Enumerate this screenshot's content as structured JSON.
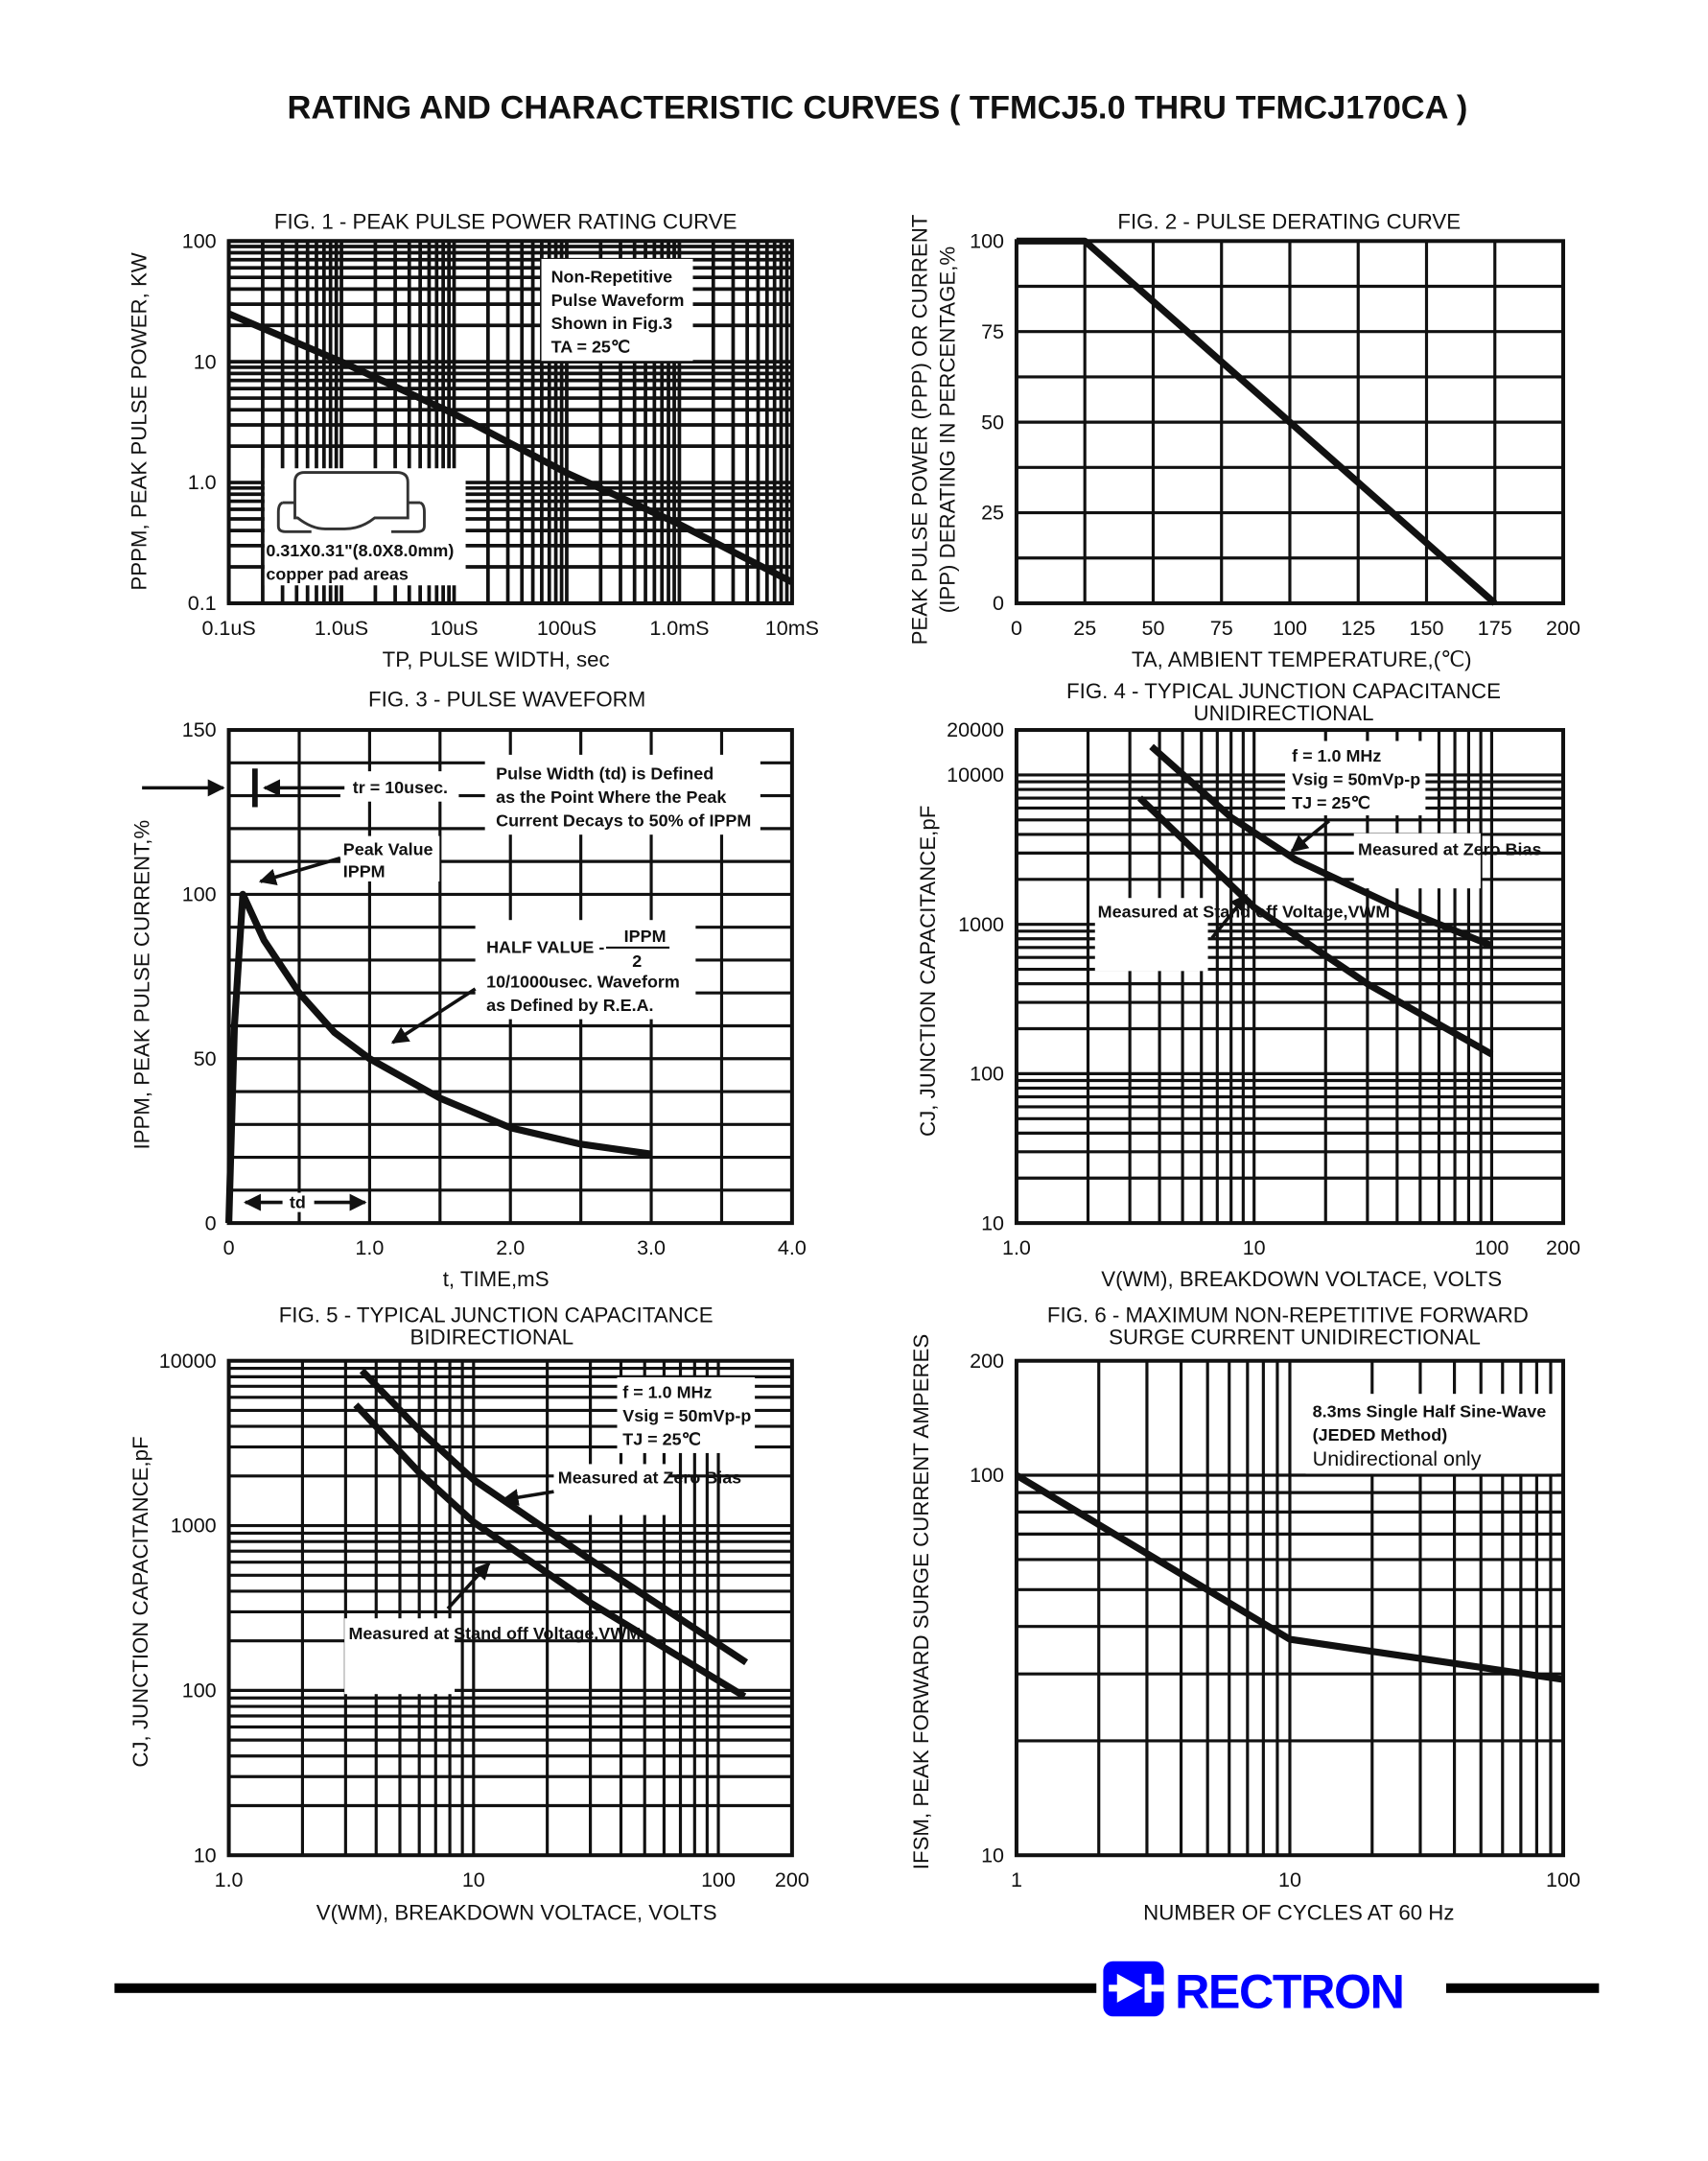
{
  "page": {
    "title": "RATING AND CHARACTERISTIC CURVES ( TFMCJ5.0 THRU TFMCJ170CA )",
    "logo_text": "RECTRON",
    "brand_color": "#0000ff"
  },
  "chart_data": [
    {
      "type": "line",
      "title": "FIG. 1 - PEAK PULSE POWER RATING CURVE",
      "xlabel": "TP, PULSE WIDTH, sec",
      "ylabel": "PPPM, PEAK PULSE POWER, KW",
      "x_scale": "log",
      "y_scale": "log",
      "xlim": [
        1e-07,
        0.01
      ],
      "ylim": [
        0.1,
        100
      ],
      "grid": true,
      "x_ticks": [
        {
          "value": 1e-07,
          "label": "0.1uS"
        },
        {
          "value": 1e-06,
          "label": "1.0uS"
        },
        {
          "value": 1e-05,
          "label": "10uS"
        },
        {
          "value": 0.0001,
          "label": "100uS"
        },
        {
          "value": 0.001,
          "label": "1.0mS"
        },
        {
          "value": 0.01,
          "label": "10mS"
        }
      ],
      "y_ticks": [
        {
          "value": 100,
          "label": "100"
        },
        {
          "value": 10,
          "label": "10"
        },
        {
          "value": 1,
          "label": "1.0"
        },
        {
          "value": 0.1,
          "label": "0.1"
        }
      ],
      "series": [
        {
          "x": [
            1e-07,
            1e-06,
            1e-05,
            0.0001,
            0.001,
            0.01
          ],
          "y": [
            25,
            10,
            3.7,
            1.2,
            0.45,
            0.15
          ]
        }
      ],
      "annotations": [
        "Non-Repetitive",
        "Pulse Waveform",
        "Shown in Fig.3",
        "TA = 25℃",
        "0.31X0.31\"(8.0X8.0mm)",
        "copper pad areas"
      ]
    },
    {
      "type": "line",
      "title": "FIG. 2 - PULSE DERATING CURVE",
      "xlabel": "TA, AMBIENT TEMPERATURE,(℃)",
      "ylabel": [
        "PEAK PULSE POWER (PPP) OR CURRENT",
        "(IPP) DERATING IN PERCENTAGE,%"
      ],
      "x_scale": "linear",
      "y_scale": "linear",
      "xlim": [
        0,
        200
      ],
      "ylim": [
        0,
        100
      ],
      "x_grid_step": 25,
      "y_grid_step": 12.5,
      "grid": true,
      "x_ticks": [
        {
          "value": 0,
          "label": "0"
        },
        {
          "value": 25,
          "label": "25"
        },
        {
          "value": 50,
          "label": "50"
        },
        {
          "value": 75,
          "label": "75"
        },
        {
          "value": 100,
          "label": "100"
        },
        {
          "value": 125,
          "label": "125"
        },
        {
          "value": 150,
          "label": "150"
        },
        {
          "value": 175,
          "label": "175"
        },
        {
          "value": 200,
          "label": "200"
        }
      ],
      "y_ticks": [
        {
          "value": 100,
          "label": "100"
        },
        {
          "value": 75,
          "label": "75"
        },
        {
          "value": 50,
          "label": "50"
        },
        {
          "value": 25,
          "label": "25"
        },
        {
          "value": 0,
          "label": "0"
        }
      ],
      "series": [
        {
          "x": [
            0,
            25,
            175
          ],
          "y": [
            100,
            100,
            0
          ]
        }
      ],
      "annotations": []
    },
    {
      "type": "line",
      "title": "FIG. 3 - PULSE WAVEFORM",
      "xlabel": "t, TIME,mS",
      "ylabel": "IPPM, PEAK PULSE CURRENT,%",
      "x_scale": "linear",
      "y_scale": "linear",
      "xlim": [
        0,
        4.0
      ],
      "ylim": [
        0,
        150
      ],
      "x_grid_step": 0.5,
      "y_grid_step": 10,
      "grid": true,
      "x_ticks": [
        {
          "value": 0,
          "label": "0"
        },
        {
          "value": 1,
          "label": "1.0"
        },
        {
          "value": 2,
          "label": "2.0"
        },
        {
          "value": 3,
          "label": "3.0"
        },
        {
          "value": 4,
          "label": "4.0"
        }
      ],
      "y_ticks": [
        {
          "value": 150,
          "label": "150"
        },
        {
          "value": 100,
          "label": "100"
        },
        {
          "value": 50,
          "label": "50"
        },
        {
          "value": 0,
          "label": "0"
        }
      ],
      "series": [
        {
          "x": [
            0,
            0.04,
            0.1,
            0.25,
            0.5,
            0.75,
            1.0,
            1.5,
            2.0,
            2.5,
            3.0
          ],
          "y": [
            0,
            60,
            100,
            86,
            70,
            58,
            50,
            38,
            29,
            24,
            21
          ]
        }
      ],
      "annotations": [
        "tr = 10usec.",
        "Pulse Width (td) is Defined",
        "as the Point Where the Peak",
        "Current Decays to 50% of IPPM",
        "Peak Value",
        "IPPM",
        "HALF VALUE -",
        "IPPM",
        "2",
        "10/1000usec. Waveform",
        "as Defined by R.E.A.",
        "td"
      ]
    },
    {
      "type": "line",
      "title": [
        "FIG. 4 - TYPICAL JUNCTION CAPACITANCE",
        "UNIDIRECTIONAL"
      ],
      "xlabel": "V(WM), BREAKDOWN VOLTACE, VOLTS",
      "ylabel": "CJ, JUNCTION CAPACITANCE,pF",
      "x_scale": "log",
      "y_scale": "log",
      "xlim": [
        1,
        200
      ],
      "ylim": [
        10,
        20000
      ],
      "grid": true,
      "x_ticks": [
        {
          "value": 1,
          "label": "1.0"
        },
        {
          "value": 10,
          "label": "10"
        },
        {
          "value": 100,
          "label": "100"
        },
        {
          "value": 200,
          "label": "200"
        }
      ],
      "y_ticks": [
        {
          "value": 20000,
          "label": "20000"
        },
        {
          "value": 10000,
          "label": "10000"
        },
        {
          "value": 1000,
          "label": "1000"
        },
        {
          "value": 100,
          "label": "100"
        },
        {
          "value": 10,
          "label": "10"
        }
      ],
      "series": [
        {
          "name": "Measured at Zero Bias",
          "x": [
            3.7,
            8,
            15,
            40,
            100
          ],
          "y": [
            15500,
            5200,
            2700,
            1300,
            720
          ]
        },
        {
          "name": "Measured at Stand off Voltage,VWM",
          "x": [
            3.3,
            10,
            30,
            100
          ],
          "y": [
            7000,
            1300,
            400,
            135
          ]
        }
      ],
      "annotations": [
        "f = 1.0 MHz",
        "Vsig = 50mVp-p",
        "TJ = 25℃"
      ]
    },
    {
      "type": "line",
      "title": [
        "FIG. 5 - TYPICAL JUNCTION CAPACITANCE",
        "BIDIRECTIONAL"
      ],
      "xlabel": "V(WM), BREAKDOWN VOLTACE, VOLTS",
      "ylabel": "CJ, JUNCTION CAPACITANCE,pF",
      "x_scale": "log",
      "y_scale": "log",
      "xlim": [
        1,
        200
      ],
      "ylim": [
        10,
        10000
      ],
      "grid": true,
      "x_ticks": [
        {
          "value": 1,
          "label": "1.0"
        },
        {
          "value": 10,
          "label": "10"
        },
        {
          "value": 100,
          "label": "100"
        },
        {
          "value": 200,
          "label": "200"
        }
      ],
      "y_ticks": [
        {
          "value": 10000,
          "label": "10000"
        },
        {
          "value": 1000,
          "label": "1000"
        },
        {
          "value": 100,
          "label": "100"
        },
        {
          "value": 10,
          "label": "10"
        }
      ],
      "series": [
        {
          "name": "Measured at Zero Bias",
          "x": [
            3.5,
            6,
            10,
            30,
            130
          ],
          "y": [
            8700,
            3800,
            1900,
            620,
            148
          ]
        },
        {
          "name": "Measured at Stand off Voltage,VWM",
          "x": [
            3.3,
            6,
            10,
            30,
            128
          ],
          "y": [
            5400,
            2100,
            1050,
            340,
            92
          ]
        }
      ],
      "annotations": [
        "f = 1.0 MHz",
        "Vsig = 50mVp-p",
        "TJ = 25℃"
      ]
    },
    {
      "type": "line",
      "title": [
        "FIG. 6 - MAXIMUM NON-REPETITIVE FORWARD",
        "SURGE CURRENT UNIDIRECTIONAL"
      ],
      "xlabel": "NUMBER OF CYCLES AT 60 Hz",
      "ylabel": "IFSM, PEAK FORWARD SURGE CURRENT AMPERES",
      "x_scale": "log",
      "y_scale": "log",
      "xlim": [
        1,
        100
      ],
      "ylim": [
        10,
        200
      ],
      "grid": true,
      "x_ticks": [
        {
          "value": 1,
          "label": "1"
        },
        {
          "value": 10,
          "label": "10"
        },
        {
          "value": 100,
          "label": "100"
        }
      ],
      "y_ticks": [
        {
          "value": 200,
          "label": "200"
        },
        {
          "value": 100,
          "label": "100"
        },
        {
          "value": 10,
          "label": "10"
        }
      ],
      "series": [
        {
          "x": [
            1,
            10,
            100
          ],
          "y": [
            100,
            37,
            29
          ]
        }
      ],
      "annotations": [
        "8.3ms Single Half Sine-Wave",
        "(JEDED Method)",
        "Unidirectional only"
      ]
    }
  ]
}
